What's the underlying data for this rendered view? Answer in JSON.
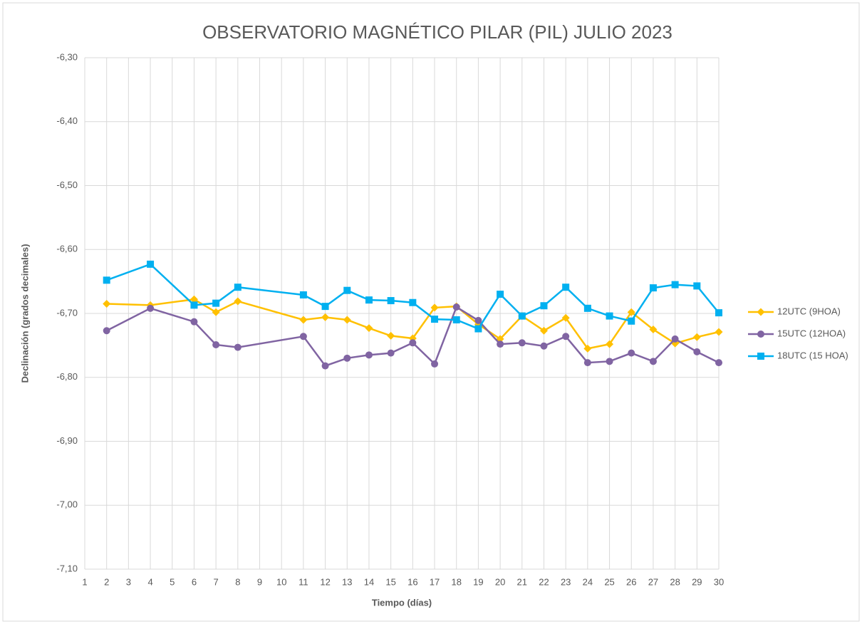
{
  "chart_data": {
    "type": "line",
    "title": "OBSERVATORIO MAGNÉTICO PILAR (PIL) JULIO 2023",
    "x_label": "Tiempo (días)",
    "y_label": "Declinación (grados decimales)",
    "x": [
      2,
      4,
      6,
      7,
      8,
      11,
      12,
      13,
      14,
      15,
      16,
      17,
      18,
      19,
      20,
      21,
      22,
      23,
      24,
      25,
      26,
      27,
      28,
      29,
      30
    ],
    "xlim": [
      1,
      30
    ],
    "xticks": [
      1,
      2,
      3,
      4,
      5,
      6,
      7,
      8,
      9,
      10,
      11,
      12,
      13,
      14,
      15,
      16,
      17,
      18,
      19,
      20,
      21,
      22,
      23,
      24,
      25,
      26,
      27,
      28,
      29,
      30
    ],
    "ylim": [
      -7.1,
      -6.3
    ],
    "yticks": [
      {
        "value": -7.1,
        "label": "-7,10"
      },
      {
        "value": -7.0,
        "label": "-7,00"
      },
      {
        "value": -6.9,
        "label": "-6,90"
      },
      {
        "value": -6.8,
        "label": "-6,80"
      },
      {
        "value": -6.7,
        "label": "-6,70"
      },
      {
        "value": -6.6,
        "label": "-6,60"
      },
      {
        "value": -6.5,
        "label": "-6,50"
      },
      {
        "value": -6.4,
        "label": "-6,40"
      },
      {
        "value": -6.3,
        "label": "-6,30"
      }
    ],
    "grid": true,
    "legend": "right",
    "series": [
      {
        "name": "12UTC (9HOA)",
        "color": "#FFC000",
        "marker": "diamond",
        "values": [
          -6.685,
          -6.687,
          -6.678,
          -6.698,
          -6.681,
          -6.71,
          -6.706,
          -6.71,
          -6.723,
          -6.735,
          -6.739,
          -6.691,
          -6.689,
          -6.717,
          -6.74,
          -6.704,
          -6.727,
          -6.707,
          -6.755,
          -6.748,
          -6.698,
          -6.725,
          -6.747,
          -6.737,
          -6.729
        ]
      },
      {
        "name": "15UTC (12HOA)",
        "color": "#8064A2",
        "marker": "circle",
        "values": [
          -6.727,
          -6.692,
          -6.713,
          -6.749,
          -6.753,
          -6.736,
          -6.782,
          -6.77,
          -6.765,
          -6.762,
          -6.746,
          -6.779,
          -6.69,
          -6.711,
          -6.748,
          -6.746,
          -6.751,
          -6.736,
          -6.777,
          -6.775,
          -6.762,
          -6.775,
          -6.74,
          -6.76,
          -6.777
        ]
      },
      {
        "name": "18UTC (15 HOA)",
        "color": "#00B0F0",
        "marker": "square",
        "values": [
          -6.648,
          -6.623,
          -6.687,
          -6.684,
          -6.659,
          -6.671,
          -6.689,
          -6.664,
          -6.679,
          -6.68,
          -6.683,
          -6.709,
          -6.71,
          -6.724,
          -6.67,
          -6.704,
          -6.688,
          -6.659,
          -6.692,
          -6.704,
          -6.712,
          -6.66,
          -6.655,
          -6.657,
          -6.699
        ]
      }
    ]
  }
}
